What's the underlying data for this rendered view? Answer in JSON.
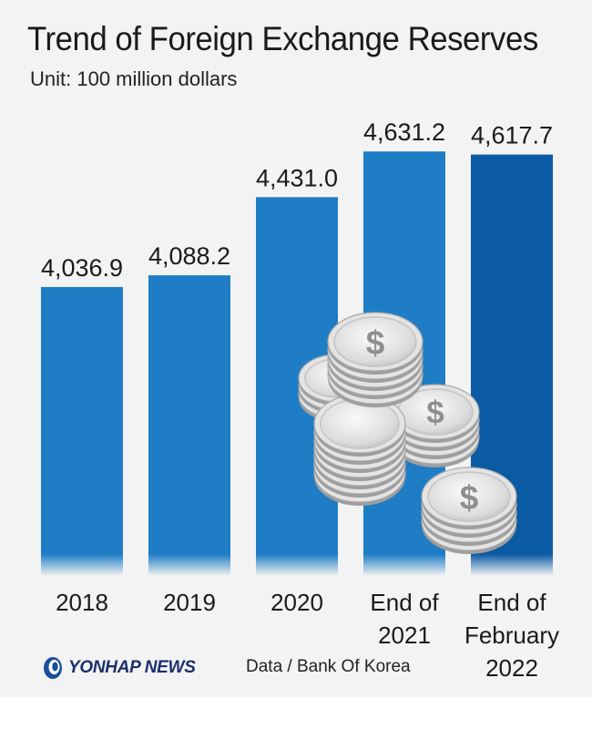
{
  "title": "Trend of Foreign Exchange Reserves",
  "unit": "Unit: 100 million dollars",
  "source": "Data / Bank Of Korea",
  "logo": {
    "text": "YONHAP NEWS",
    "icon": "yonhap-logo-icon"
  },
  "colors": {
    "bar": "#1f7dc5",
    "bar_highlight": "#0b5aa4",
    "background": "#f3f3f3",
    "coin": "#d9d9d9"
  },
  "chart_data": {
    "type": "bar",
    "categories": [
      "2018",
      "2019",
      "2020",
      "End of 2021",
      "End of February 2022"
    ],
    "category_lines": [
      [
        "2018"
      ],
      [
        "2019"
      ],
      [
        "2020"
      ],
      [
        "End of",
        "2021"
      ],
      [
        "End of",
        "February",
        "2022"
      ]
    ],
    "values": [
      4036.9,
      4088.2,
      4431.0,
      4631.2,
      4617.7
    ],
    "value_labels": [
      "4,036.9",
      "4,088.2",
      "4,431.0",
      "4,631.2",
      "4,617.7"
    ],
    "highlight_index": 4,
    "ylim": [
      2770,
      4700
    ],
    "grid": false,
    "legend": "none",
    "decoration": "silver-dollar-coins-icon"
  }
}
